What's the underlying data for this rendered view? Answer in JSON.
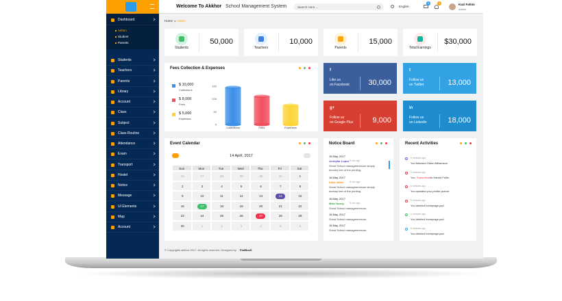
{
  "header": {
    "title_bold": "Welcome To Akkhor",
    "title_rest": "School Management System",
    "search_placeholder": "Search Here ...",
    "language": "English",
    "message_badge": "5",
    "notification_badge": "8",
    "user_name": "Kazi Fahim",
    "user_role": "Admin"
  },
  "sidebar": {
    "items": [
      {
        "label": "Dashboard",
        "children": [
          "Admin",
          "Student",
          "Parents"
        ]
      },
      {
        "label": "Students"
      },
      {
        "label": "Teachers"
      },
      {
        "label": "Parents"
      },
      {
        "label": "Library"
      },
      {
        "label": "Account"
      },
      {
        "label": "Class"
      },
      {
        "label": "Subject"
      },
      {
        "label": "Class Routine"
      },
      {
        "label": "Attendance"
      },
      {
        "label": "Exam"
      },
      {
        "label": "Transport"
      },
      {
        "label": "Hostel"
      },
      {
        "label": "Notice"
      },
      {
        "label": "Message"
      },
      {
        "label": "UI Elements"
      },
      {
        "label": "Map"
      },
      {
        "label": "Account"
      }
    ]
  },
  "breadcrumb": [
    "Home",
    "Admin"
  ],
  "stats": [
    {
      "label": "Students",
      "value": "50,000",
      "icon_color": "#3fbf6b",
      "icon_bg": "#d1f3e0"
    },
    {
      "label": "Teachers",
      "value": "10,000",
      "icon_color": "#3f7fe0",
      "icon_bg": "#e1f1ff"
    },
    {
      "label": "Parents",
      "value": "15,000",
      "icon_color": "#ffa601",
      "icon_bg": "#fff2d8"
    },
    {
      "label": "Total Earnings",
      "value": "$30,000",
      "icon_color": "#16b39a",
      "icon_bg": "#ffeaea"
    }
  ],
  "fees": {
    "title": "Fees Collection & Expenses",
    "legend": [
      {
        "amount": "$ 10,000",
        "label": "Collections"
      },
      {
        "amount": "$ 8,000",
        "label": "Fees"
      },
      {
        "amount": "$ 5,000",
        "label": "Expenses"
      }
    ],
    "chart": {
      "type": "bar",
      "categories": [
        "Collections",
        "Fees",
        "Expenses"
      ],
      "values": [
        145,
        110,
        75
      ],
      "colors": [
        "#3a8fe8",
        "#f0505e",
        "#fcd535"
      ],
      "ylim": [
        0,
        150
      ],
      "yticks": [
        0,
        50,
        100,
        150
      ]
    }
  },
  "social": [
    {
      "lines": [
        "Like us",
        "on Facebook"
      ],
      "value": "30,000",
      "icon": "f",
      "color": "#3b5e9c"
    },
    {
      "lines": [
        "Follow us",
        "on Twitter"
      ],
      "value": "13,000",
      "icon": "t",
      "color": "#33a2e5"
    },
    {
      "lines": [
        "Follow us",
        "on Google Plus"
      ],
      "value": "9,000",
      "icon": "g+",
      "color": "#d83f33"
    },
    {
      "lines": [
        "Follow us",
        "on Linkedin"
      ],
      "value": "18,000",
      "icon": "in",
      "color": "#1f8ccf"
    }
  ],
  "calendar": {
    "title": "Event Calendar",
    "month": "14 April, 2017",
    "weekdays": [
      "Sun",
      "Mon",
      "Tue",
      "Wed",
      "Thu",
      "Fri",
      "Sat"
    ],
    "weeks": [
      [
        26,
        27,
        28,
        29,
        30,
        31,
        1
      ],
      [
        2,
        3,
        4,
        5,
        6,
        7,
        8
      ],
      [
        9,
        10,
        11,
        12,
        13,
        14,
        15
      ],
      [
        16,
        17,
        18,
        19,
        20,
        21,
        22
      ],
      [
        23,
        24,
        25,
        26,
        27,
        28,
        29
      ],
      [
        30,
        1,
        2,
        3,
        4,
        5,
        6
      ]
    ],
    "muted": [
      [
        0,
        0
      ],
      [
        0,
        1
      ],
      [
        0,
        2
      ],
      [
        0,
        3
      ],
      [
        0,
        4
      ],
      [
        0,
        5
      ],
      [
        5,
        1
      ],
      [
        5,
        2
      ],
      [
        5,
        3
      ],
      [
        5,
        4
      ],
      [
        5,
        5
      ],
      [
        5,
        6
      ]
    ],
    "highlights": [
      {
        "cell": [
          2,
          5
        ],
        "color": "#5a4fa5"
      },
      {
        "cell": [
          3,
          1
        ],
        "color": "#3fbf6b"
      },
      {
        "cell": [
          4,
          4
        ],
        "color": "#f0314e"
      }
    ]
  },
  "notice_board": {
    "title": "Notice Board",
    "items": [
      {
        "date": "16 May, 2017",
        "author": "Jennyfar Lopez",
        "time": "5 min ago",
        "text": "Great School managmenesom simply dummy text of the printing.",
        "author_color": "#5a3fbf"
      },
      {
        "date": "16 May, 2017",
        "author": "Killar Miller",
        "time": "5 min ago",
        "text": "Great School managmenesom simply dummy text of the printing.",
        "author_color": "#ff8a00"
      },
      {
        "date": "16 May, 2017",
        "author": "Mike Hussy",
        "time": "5 min ago",
        "text": "Great School managmenesom.",
        "author_color": "#3fa14b"
      },
      {
        "date": "16 May, 2017",
        "text": "Great School managmenesom."
      },
      {
        "date": "16 May, 2017",
        "text": "Great School managmenesom."
      }
    ]
  },
  "activities": {
    "title": "Recent Activities",
    "items": [
      {
        "time": "5 minutes ago",
        "text": "You followed Olivia Williamson",
        "icon_color": "#7b5fd0"
      },
      {
        "time": "5 minutes ago",
        "text": "You",
        "highlight": "Subscribed",
        "text_after": "to Harold Fuller",
        "icon_color": "#f0314e"
      },
      {
        "time": "5 minutes ago",
        "text": "You updated your profile picture",
        "icon_color": "#f0314e"
      },
      {
        "time": "5 minutes ago",
        "text": "You deleted homepage.psd",
        "icon_color": "#f0314e"
      },
      {
        "time": "5 minutes ago",
        "text": "You deleted homepage.psd",
        "icon_color": "#3fbf6b"
      },
      {
        "time": "5 minutes ago",
        "text": "You deleted homepage.psd",
        "icon_color": "#33a2e5"
      }
    ]
  },
  "footer": {
    "text": "© Copyrights akkhor 2017. All rights reserved. Designed by",
    "link": "PsdBosS"
  }
}
